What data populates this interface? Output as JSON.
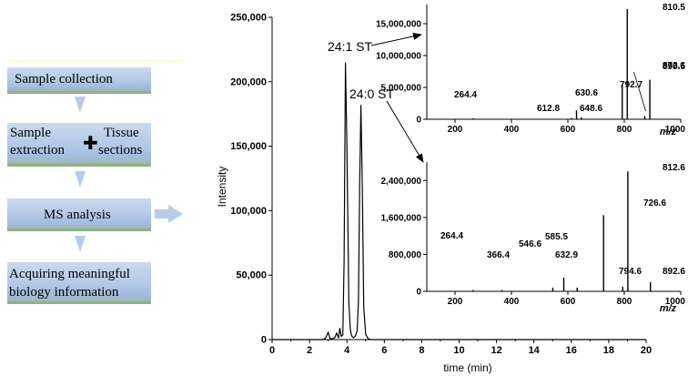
{
  "flowchart": {
    "step1": "Sample collection",
    "step2_line1": "Sample",
    "step2_line2": "extraction",
    "step2_tissue_line1": "Tissue",
    "step2_tissue_line2": "sections",
    "step3": "MS analysis",
    "step4_line1": "Acquiring meaningful",
    "step4_line2": "biology information",
    "colors": {
      "box": "#b3c9e6",
      "arrow": "#b8cce8"
    }
  },
  "chart_data": [
    {
      "type": "line",
      "name": "chromatogram",
      "xlabel": "time (min)",
      "ylabel": "Intensity",
      "xlim": [
        0,
        20
      ],
      "ylim": [
        0,
        250000
      ],
      "xticks": [
        0,
        2,
        4,
        6,
        8,
        10,
        12,
        14,
        16,
        18,
        20
      ],
      "yticks": [
        0,
        50000,
        100000,
        150000,
        200000,
        250000
      ],
      "ytick_labels": [
        "0",
        "50,000",
        "100,000",
        "150,000",
        "200,000",
        "250,000"
      ],
      "series": [
        {
          "x": [
            0,
            2.7,
            2.85,
            3.0,
            3.1,
            3.2,
            3.35,
            3.45,
            3.55,
            3.62,
            3.7,
            3.78,
            3.85,
            3.92,
            4.0,
            4.1,
            4.18,
            4.25,
            4.35,
            4.45,
            4.55,
            4.62,
            4.68,
            4.75,
            4.82,
            4.9,
            5.0,
            5.15,
            5.3,
            20
          ],
          "y": [
            0,
            0,
            1000,
            5500,
            800,
            600,
            1500,
            5000,
            1200,
            9000,
            2500,
            3500,
            60000,
            215000,
            150000,
            30000,
            8000,
            3000,
            1500,
            2500,
            7000,
            30000,
            120000,
            182000,
            120000,
            25000,
            4000,
            500,
            0,
            0
          ]
        }
      ],
      "annotations": [
        {
          "text": "24:1 ST",
          "x": 3.95,
          "y": 215000
        },
        {
          "text": "24:0 ST",
          "x": 4.75,
          "y": 182000
        }
      ]
    },
    {
      "type": "bar",
      "name": "spectrum-24-1",
      "xlabel": "m/z",
      "xlim": [
        100,
        1000
      ],
      "ylim": [
        0,
        18000000
      ],
      "xticks": [
        200,
        400,
        600,
        800,
        1000
      ],
      "yticks": [
        0,
        5000000,
        10000000,
        15000000
      ],
      "ytick_labels": [
        "0",
        "5,000,000",
        "10,000,000",
        "15,000,000"
      ],
      "peaks": [
        {
          "mz": 264.4,
          "value": 150000,
          "label": "264.4"
        },
        {
          "mz": 612.8,
          "value": 200000,
          "label": "612.8"
        },
        {
          "mz": 630.6,
          "value": 1400000,
          "label": "630.6"
        },
        {
          "mz": 648.6,
          "value": 300000,
          "label": "648.6"
        },
        {
          "mz": 792.7,
          "value": 5500000,
          "label": "792.7"
        },
        {
          "mz": 810.5,
          "value": 17300000,
          "label": "810.5"
        },
        {
          "mz": 872.6,
          "value": 500000,
          "label": "872.6"
        },
        {
          "mz": 890.5,
          "value": 6200000,
          "label": "890.5"
        }
      ]
    },
    {
      "type": "bar",
      "name": "spectrum-24-0",
      "xlabel": "m/z",
      "xlim": [
        100,
        1000
      ],
      "ylim": [
        0,
        2800000
      ],
      "xticks": [
        200,
        400,
        600,
        800,
        1000
      ],
      "yticks": [
        0,
        800000,
        1600000,
        2400000
      ],
      "ytick_labels": [
        "0",
        "800,000",
        "1,600,000",
        "2,400,000"
      ],
      "peaks": [
        {
          "mz": 264.4,
          "value": 30000,
          "label": "264.4"
        },
        {
          "mz": 366.4,
          "value": 30000,
          "label": "366.4"
        },
        {
          "mz": 546.6,
          "value": 80000,
          "label": "546.6"
        },
        {
          "mz": 585.5,
          "value": 300000,
          "label": "585.5"
        },
        {
          "mz": 632.9,
          "value": 80000,
          "label": "632.9"
        },
        {
          "mz": 726.6,
          "value": 1650000,
          "label": "726.6"
        },
        {
          "mz": 794.6,
          "value": 100000,
          "label": "794.6"
        },
        {
          "mz": 812.6,
          "value": 2600000,
          "label": "812.6"
        },
        {
          "mz": 892.6,
          "value": 200000,
          "label": "892.6"
        }
      ]
    }
  ]
}
